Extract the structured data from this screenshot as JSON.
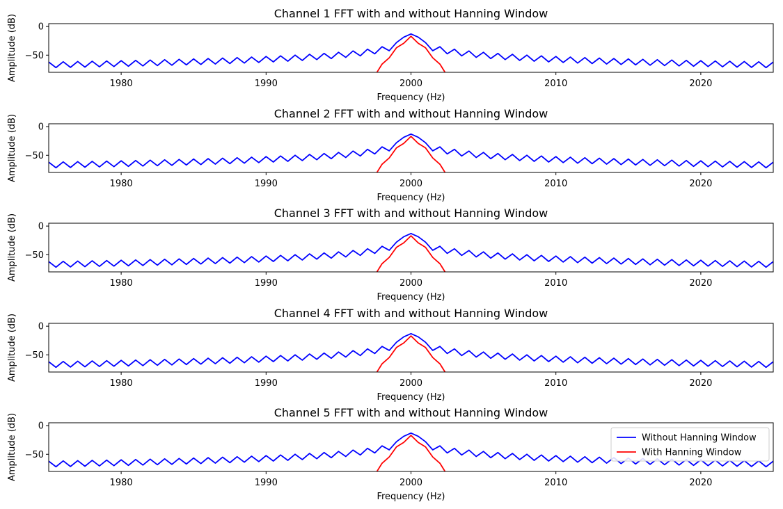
{
  "colors": {
    "without_window": "#0000ff",
    "with_window": "#ff0000",
    "axes": "#000000",
    "legend_border": "#cccccc"
  },
  "legend": {
    "placement": "top-right",
    "shown_on_subplot": 5,
    "entries": [
      "Without Hanning Window",
      "With Hanning Window"
    ]
  },
  "chart_data": [
    {
      "type": "line",
      "title": "Channel 1 FFT with and without Hanning Window",
      "xlabel": "Frequency (Hz)",
      "ylabel": "Amplitude (dB)",
      "xlim": [
        1975,
        2025
      ],
      "ylim": [
        -80,
        5
      ],
      "xticks": [
        1980,
        1990,
        2000,
        2010,
        2020
      ],
      "yticks": [
        0,
        -50
      ],
      "grid": false,
      "series": [
        {
          "name": "Without Hanning Window",
          "color": "#0000ff",
          "peak_freq": 2000,
          "peak_db": -13,
          "bin_spacing_hz": 0.5,
          "sidelobe_db_near_peak": -28,
          "sidelobe_db_far": -62,
          "null_depth_db": 10
        },
        {
          "name": "With Hanning Window",
          "color": "#ff0000",
          "peak_freq": 2000,
          "peak_db": -17,
          "bin_spacing_hz": 0.5,
          "visible_range_hz": [
            1996,
            2004
          ]
        }
      ]
    },
    {
      "type": "line",
      "title": "Channel 2 FFT with and without Hanning Window",
      "xlabel": "Frequency (Hz)",
      "ylabel": "Amplitude (dB)",
      "xlim": [
        1975,
        2025
      ],
      "ylim": [
        -80,
        5
      ],
      "xticks": [
        1980,
        1990,
        2000,
        2010,
        2020
      ],
      "yticks": [
        0,
        -50
      ],
      "grid": false,
      "series": [
        {
          "name": "Without Hanning Window",
          "color": "#0000ff",
          "peak_freq": 2000,
          "peak_db": -13,
          "bin_spacing_hz": 0.5,
          "sidelobe_db_near_peak": -28,
          "sidelobe_db_far": -62,
          "null_depth_db": 10
        },
        {
          "name": "With Hanning Window",
          "color": "#ff0000",
          "peak_freq": 2000,
          "peak_db": -17,
          "bin_spacing_hz": 0.5,
          "visible_range_hz": [
            1996,
            2004
          ]
        }
      ]
    },
    {
      "type": "line",
      "title": "Channel 3 FFT with and without Hanning Window",
      "xlabel": "Frequency (Hz)",
      "ylabel": "Amplitude (dB)",
      "xlim": [
        1975,
        2025
      ],
      "ylim": [
        -80,
        5
      ],
      "xticks": [
        1980,
        1990,
        2000,
        2010,
        2020
      ],
      "yticks": [
        0,
        -50
      ],
      "grid": false,
      "series": [
        {
          "name": "Without Hanning Window",
          "color": "#0000ff",
          "peak_freq": 2000,
          "peak_db": -13,
          "bin_spacing_hz": 0.5,
          "sidelobe_db_near_peak": -28,
          "sidelobe_db_far": -62,
          "null_depth_db": 10
        },
        {
          "name": "With Hanning Window",
          "color": "#ff0000",
          "peak_freq": 2000,
          "peak_db": -17,
          "bin_spacing_hz": 0.5,
          "visible_range_hz": [
            1996,
            2004
          ]
        }
      ]
    },
    {
      "type": "line",
      "title": "Channel 4 FFT with and without Hanning Window",
      "xlabel": "Frequency (Hz)",
      "ylabel": "Amplitude (dB)",
      "xlim": [
        1975,
        2025
      ],
      "ylim": [
        -80,
        5
      ],
      "xticks": [
        1980,
        1990,
        2000,
        2010,
        2020
      ],
      "yticks": [
        0,
        -50
      ],
      "grid": false,
      "series": [
        {
          "name": "Without Hanning Window",
          "color": "#0000ff",
          "peak_freq": 2000,
          "peak_db": -13,
          "bin_spacing_hz": 0.5,
          "sidelobe_db_near_peak": -28,
          "sidelobe_db_far": -62,
          "null_depth_db": 10
        },
        {
          "name": "With Hanning Window",
          "color": "#ff0000",
          "peak_freq": 2000,
          "peak_db": -17,
          "bin_spacing_hz": 0.5,
          "visible_range_hz": [
            1996,
            2004
          ]
        }
      ]
    },
    {
      "type": "line",
      "title": "Channel 5 FFT with and without Hanning Window",
      "xlabel": "Frequency (Hz)",
      "ylabel": "Amplitude (dB)",
      "xlim": [
        1975,
        2025
      ],
      "ylim": [
        -80,
        5
      ],
      "xticks": [
        1980,
        1990,
        2000,
        2010,
        2020
      ],
      "yticks": [
        0,
        -50
      ],
      "grid": false,
      "series": [
        {
          "name": "Without Hanning Window",
          "color": "#0000ff",
          "peak_freq": 2000,
          "peak_db": -13,
          "bin_spacing_hz": 0.5,
          "sidelobe_db_near_peak": -28,
          "sidelobe_db_far": -62,
          "null_depth_db": 10
        },
        {
          "name": "With Hanning Window",
          "color": "#ff0000",
          "peak_freq": 2000,
          "peak_db": -17,
          "bin_spacing_hz": 0.5,
          "visible_range_hz": [
            1996,
            2004
          ]
        }
      ]
    }
  ]
}
